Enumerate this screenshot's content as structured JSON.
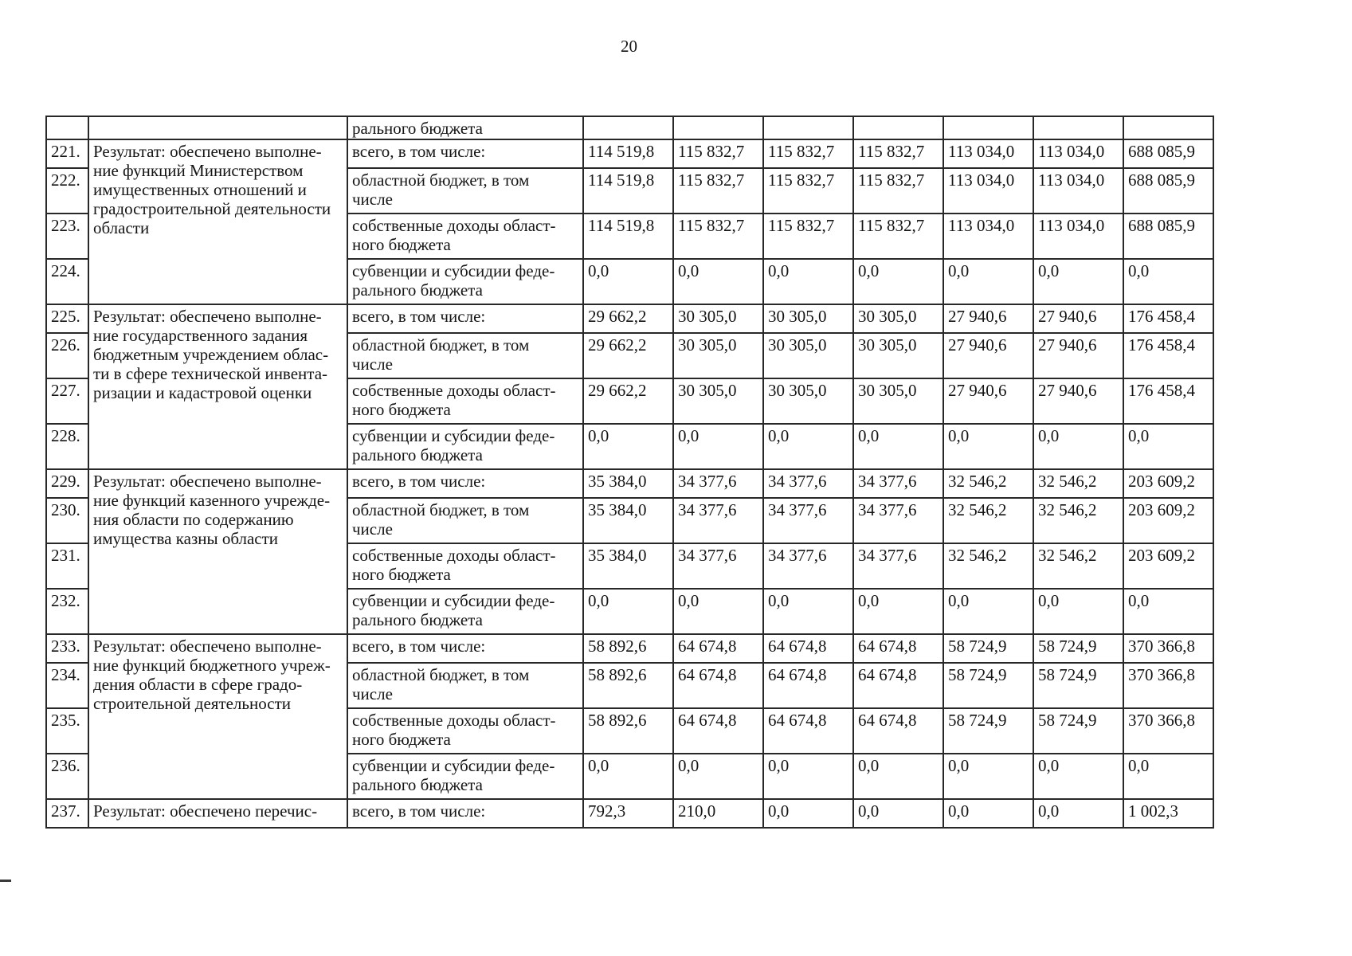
{
  "page": {
    "number": "20"
  },
  "table": {
    "continuation_row": {
      "num": "",
      "funding": "рального бюджета",
      "values": [
        "",
        "",
        "",
        "",
        "",
        "",
        ""
      ]
    },
    "groups": [
      {
        "description": "Результат: обеспечено выполне-\nние функций Министерством\nимущественных отношений и\nградостроительной деятельности\nобласти",
        "rows": [
          {
            "num": "221.",
            "funding": "всего, в том числе:",
            "values": [
              "114 519,8",
              "115 832,7",
              "115 832,7",
              "115 832,7",
              "113 034,0",
              "113 034,0",
              "688 085,9"
            ]
          },
          {
            "num": "222.",
            "funding": "областной бюджет, в том\nчисле",
            "values": [
              "114 519,8",
              "115 832,7",
              "115 832,7",
              "115 832,7",
              "113 034,0",
              "113 034,0",
              "688 085,9"
            ]
          },
          {
            "num": "223.",
            "funding": "собственные доходы област-\nного бюджета",
            "values": [
              "114 519,8",
              "115 832,7",
              "115 832,7",
              "115 832,7",
              "113 034,0",
              "113 034,0",
              "688 085,9"
            ]
          },
          {
            "num": "224.",
            "funding": "субвенции и субсидии феде-\nрального бюджета",
            "values": [
              "0,0",
              "0,0",
              "0,0",
              "0,0",
              "0,0",
              "0,0",
              "0,0"
            ]
          }
        ]
      },
      {
        "description": "Результат: обеспечено выполне-\nние государственного задания\nбюджетным учреждением облас-\nти в сфере технической инвента-\nризации и кадастровой оценки",
        "rows": [
          {
            "num": "225.",
            "funding": "всего, в том числе:",
            "values": [
              "29 662,2",
              "30 305,0",
              "30 305,0",
              "30 305,0",
              "27 940,6",
              "27 940,6",
              "176 458,4"
            ]
          },
          {
            "num": "226.",
            "funding": "областной бюджет, в том\nчисле",
            "values": [
              "29 662,2",
              "30 305,0",
              "30 305,0",
              "30 305,0",
              "27 940,6",
              "27 940,6",
              "176 458,4"
            ]
          },
          {
            "num": "227.",
            "funding": "собственные доходы област-\nного бюджета",
            "values": [
              "29 662,2",
              "30 305,0",
              "30 305,0",
              "30 305,0",
              "27 940,6",
              "27 940,6",
              "176 458,4"
            ]
          },
          {
            "num": "228.",
            "funding": "субвенции и субсидии феде-\nрального бюджета",
            "values": [
              "0,0",
              "0,0",
              "0,0",
              "0,0",
              "0,0",
              "0,0",
              "0,0"
            ]
          }
        ]
      },
      {
        "description": "Результат: обеспечено выполне-\nние функций казенного учрежде-\nния области по содержанию\nимущества казны области",
        "rows": [
          {
            "num": "229.",
            "funding": "всего, в том числе:",
            "values": [
              "35 384,0",
              "34 377,6",
              "34 377,6",
              "34 377,6",
              "32 546,2",
              "32 546,2",
              "203 609,2"
            ]
          },
          {
            "num": "230.",
            "funding": "областной бюджет, в том\nчисле",
            "values": [
              "35 384,0",
              "34 377,6",
              "34 377,6",
              "34 377,6",
              "32 546,2",
              "32 546,2",
              "203 609,2"
            ]
          },
          {
            "num": "231.",
            "funding": "собственные доходы област-\nного бюджета",
            "values": [
              "35 384,0",
              "34 377,6",
              "34 377,6",
              "34 377,6",
              "32 546,2",
              "32 546,2",
              "203 609,2"
            ]
          },
          {
            "num": "232.",
            "funding": "субвенции и субсидии феде-\nрального бюджета",
            "values": [
              "0,0",
              "0,0",
              "0,0",
              "0,0",
              "0,0",
              "0,0",
              "0,0"
            ]
          }
        ]
      },
      {
        "description": "Результат: обеспечено выполне-\nние функций бюджетного учреж-\nдения области в сфере градо-\nстроительной деятельности",
        "rows": [
          {
            "num": "233.",
            "funding": "всего, в том числе:",
            "values": [
              "58 892,6",
              "64 674,8",
              "64 674,8",
              "64 674,8",
              "58 724,9",
              "58 724,9",
              "370 366,8"
            ]
          },
          {
            "num": "234.",
            "funding": "областной бюджет, в том\nчисле",
            "values": [
              "58 892,6",
              "64 674,8",
              "64 674,8",
              "64 674,8",
              "58 724,9",
              "58 724,9",
              "370 366,8"
            ]
          },
          {
            "num": "235.",
            "funding": "собственные доходы област-\nного бюджета",
            "values": [
              "58 892,6",
              "64 674,8",
              "64 674,8",
              "64 674,8",
              "58 724,9",
              "58 724,9",
              "370 366,8"
            ]
          },
          {
            "num": "236.",
            "funding": "субвенции и субсидии феде-\nрального бюджета",
            "values": [
              "0,0",
              "0,0",
              "0,0",
              "0,0",
              "0,0",
              "0,0",
              "0,0"
            ]
          }
        ]
      },
      {
        "description": "Результат: обеспечено перечис-",
        "rows": [
          {
            "num": "237.",
            "funding": "всего, в том числе:",
            "values": [
              "792,3",
              "210,0",
              "0,0",
              "0,0",
              "0,0",
              "0,0",
              "1 002,3"
            ]
          }
        ]
      }
    ]
  }
}
